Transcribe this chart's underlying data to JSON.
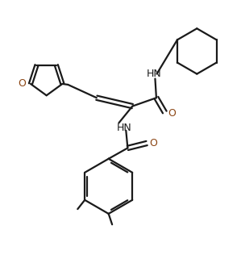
{
  "bg_color": "#ffffff",
  "line_color": "#1a1a1a",
  "o_color": "#8B4513",
  "figsize": [
    2.99,
    3.47
  ],
  "dpi": 100,
  "xlim": [
    0,
    10
  ],
  "ylim": [
    0,
    11.57
  ]
}
